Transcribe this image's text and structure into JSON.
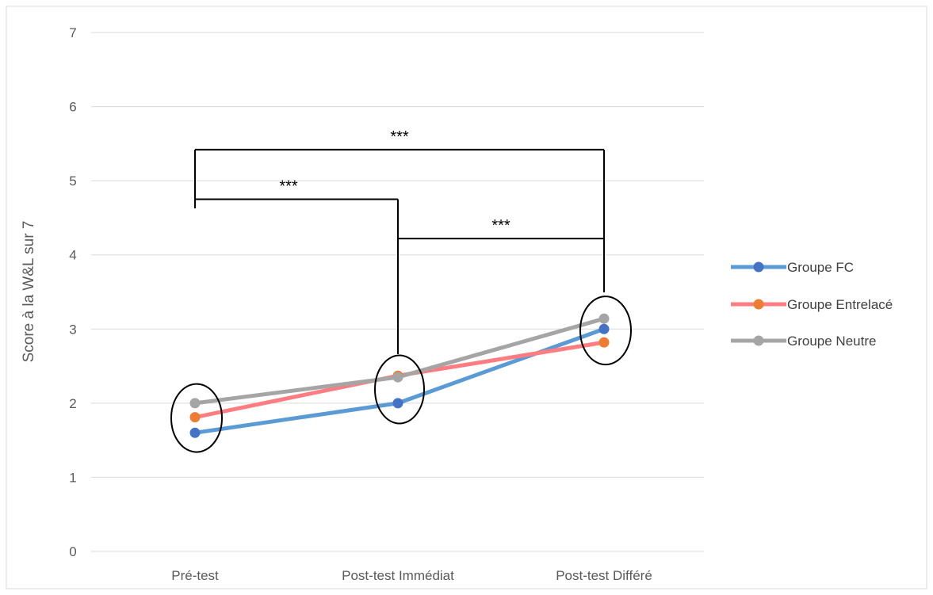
{
  "chart_data": {
    "type": "line",
    "categories": [
      "Pré-test",
      "Post-test Immédiat",
      "Post-test Différé"
    ],
    "ylabel": "Score à la W&L sur 7",
    "xlabel": "",
    "ylim": [
      0,
      7
    ],
    "yticks": [
      0,
      1,
      2,
      3,
      4,
      5,
      6,
      7
    ],
    "grid": true,
    "legend_position": "right",
    "series": [
      {
        "name": "Groupe FC",
        "values": [
          1.6,
          2.0,
          3.0
        ],
        "color": "#5B9BD5",
        "marker_color": "#4472C4"
      },
      {
        "name": "Groupe Entrelacé",
        "values": [
          1.81,
          2.37,
          2.82
        ],
        "color": "#FF7C80",
        "marker_color": "#ED7D31"
      },
      {
        "name": "Groupe Neutre",
        "values": [
          2.0,
          2.35,
          3.14
        ],
        "color": "#A5A5A5",
        "marker_color": "#A5A5A5"
      }
    ],
    "significance": [
      {
        "from": 0,
        "to": 2,
        "label": "***",
        "level": 5.42
      },
      {
        "from": 0,
        "to": 1,
        "label": "***",
        "level": 4.75
      },
      {
        "from": 1,
        "to": 2,
        "label": "***",
        "level": 4.22
      }
    ],
    "highlight_circles": [
      0,
      1,
      2
    ]
  }
}
